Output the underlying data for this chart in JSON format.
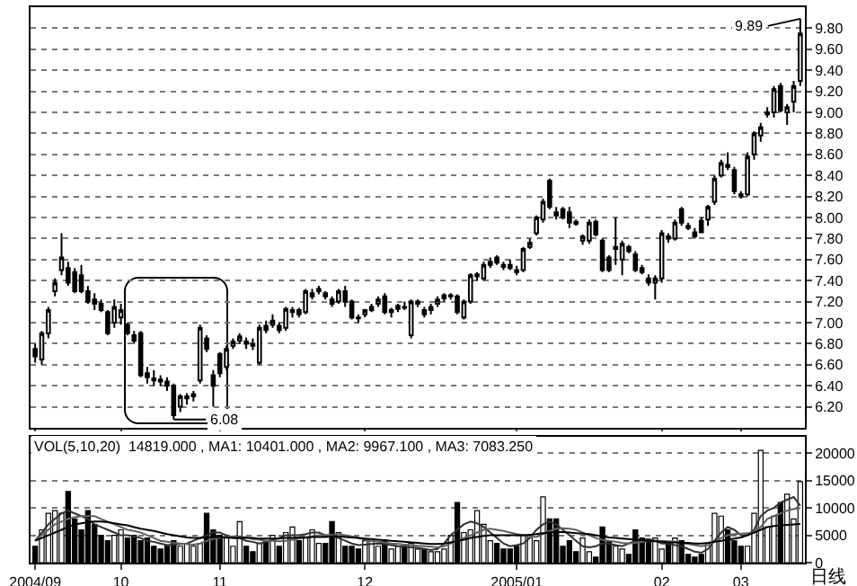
{
  "chart_data": [
    {
      "type": "candlestick",
      "color": "#000000",
      "categories": [
        "2004/09",
        null,
        null,
        null,
        null,
        null,
        null,
        null,
        null,
        null,
        null,
        null,
        null,
        "10",
        null,
        null,
        null,
        null,
        null,
        null,
        null,
        null,
        null,
        null,
        null,
        null,
        null,
        null,
        "11",
        null,
        null,
        null,
        null,
        null,
        null,
        null,
        null,
        null,
        null,
        null,
        null,
        null,
        null,
        null,
        null,
        null,
        null,
        null,
        null,
        null,
        "12",
        null,
        null,
        null,
        null,
        null,
        null,
        null,
        null,
        null,
        null,
        null,
        null,
        null,
        null,
        null,
        null,
        null,
        null,
        null,
        null,
        null,
        null,
        "2005/01",
        null,
        null,
        null,
        null,
        null,
        null,
        null,
        null,
        null,
        null,
        null,
        null,
        null,
        null,
        null,
        null,
        null,
        null,
        null,
        null,
        null,
        "02",
        null,
        null,
        null,
        null,
        null,
        null,
        null,
        null,
        null,
        null,
        null,
        "03",
        null,
        null,
        null,
        null,
        null,
        null,
        null,
        null,
        null
      ],
      "ohlc": [
        [
          6.75,
          6.8,
          6.62,
          6.68
        ],
        [
          6.65,
          6.92,
          6.6,
          6.9
        ],
        [
          6.9,
          7.15,
          6.85,
          7.12
        ],
        [
          7.3,
          7.42,
          7.25,
          7.38
        ],
        [
          7.5,
          7.85,
          7.45,
          7.62
        ],
        [
          7.52,
          7.58,
          7.35,
          7.38
        ],
        [
          7.48,
          7.52,
          7.28,
          7.3
        ],
        [
          7.45,
          7.55,
          7.28,
          7.3
        ],
        [
          7.3,
          7.35,
          7.18,
          7.2
        ],
        [
          7.22,
          7.28,
          7.12,
          7.18
        ],
        [
          7.18,
          7.22,
          7.1,
          7.12
        ],
        [
          7.1,
          7.12,
          6.88,
          6.9
        ],
        [
          7,
          7.22,
          6.95,
          7.15
        ],
        [
          7.05,
          7.18,
          6.98,
          7.12
        ],
        [
          6.98,
          7,
          6.88,
          6.9
        ],
        [
          6.88,
          6.92,
          6.8,
          6.83
        ],
        [
          6.9,
          6.92,
          6.48,
          6.5
        ],
        [
          6.52,
          6.58,
          6.42,
          6.48
        ],
        [
          6.47,
          6.55,
          6.4,
          6.45
        ],
        [
          6.46,
          6.5,
          6.4,
          6.44
        ],
        [
          6.44,
          6.48,
          6.35,
          6.4
        ],
        [
          6.4,
          6.42,
          6.08,
          6.12
        ],
        [
          6.2,
          6.32,
          6.15,
          6.3
        ],
        [
          6.28,
          6.33,
          6.22,
          6.3
        ],
        [
          6.3,
          6.35,
          6.25,
          6.32
        ],
        [
          6.45,
          6.98,
          6.42,
          6.95
        ],
        [
          6.85,
          6.88,
          6.72,
          6.75
        ],
        [
          6.5,
          6.55,
          6.2,
          6.4
        ],
        [
          6.7,
          6.72,
          6.48,
          6.52
        ],
        [
          6.58,
          6.78,
          6.55,
          6.75
        ],
        [
          6.78,
          6.85,
          6.75,
          6.82
        ],
        [
          6.83,
          6.9,
          6.8,
          6.87
        ],
        [
          6.82,
          6.86,
          6.75,
          6.8
        ],
        [
          6.8,
          6.85,
          6.74,
          6.78
        ],
        [
          6.62,
          6.98,
          6.6,
          6.95
        ],
        [
          6.97,
          7.02,
          6.9,
          6.93
        ],
        [
          6.98,
          7.08,
          6.95,
          7.02
        ],
        [
          6.97,
          7,
          6.9,
          6.93
        ],
        [
          6.95,
          7.15,
          6.92,
          7.13
        ],
        [
          7.1,
          7.15,
          7.05,
          7.12
        ],
        [
          7.12,
          7.14,
          7.05,
          7.08
        ],
        [
          7.1,
          7.32,
          7.08,
          7.3
        ],
        [
          7.25,
          7.32,
          7.22,
          7.28
        ],
        [
          7.3,
          7.35,
          7.27,
          7.32
        ],
        [
          7.28,
          7.3,
          7.22,
          7.25
        ],
        [
          7.22,
          7.25,
          7.15,
          7.18
        ],
        [
          7.2,
          7.32,
          7.18,
          7.3
        ],
        [
          7.3,
          7.35,
          7.15,
          7.2
        ],
        [
          7.2,
          7.22,
          7.03,
          7.05
        ],
        [
          7.05,
          7.08,
          7,
          7.04
        ],
        [
          7.08,
          7.13,
          7.05,
          7.12
        ],
        [
          7.12,
          7.18,
          7.1,
          7.15
        ],
        [
          7.18,
          7.25,
          7.15,
          7.22
        ],
        [
          7.25,
          7.28,
          7.08,
          7.1
        ],
        [
          7.1,
          7.14,
          7.05,
          7.12
        ],
        [
          7.13,
          7.18,
          7.1,
          7.16
        ],
        [
          7.15,
          7.2,
          7.12,
          7.14
        ],
        [
          6.88,
          7.22,
          6.85,
          7.2
        ],
        [
          7.18,
          7.22,
          7.15,
          7.2
        ],
        [
          7.12,
          7.15,
          7.05,
          7.08
        ],
        [
          7.12,
          7.18,
          7.08,
          7.15
        ],
        [
          7.18,
          7.25,
          7.15,
          7.22
        ],
        [
          7.23,
          7.28,
          7.2,
          7.26
        ],
        [
          7.25,
          7.28,
          7.22,
          7.26
        ],
        [
          7.25,
          7.27,
          7.08,
          7.1
        ],
        [
          7.05,
          7.22,
          7.03,
          7.2
        ],
        [
          7.2,
          7.47,
          7.18,
          7.45
        ],
        [
          7.44,
          7.48,
          7.4,
          7.46
        ],
        [
          7.42,
          7.58,
          7.4,
          7.55
        ],
        [
          7.55,
          7.62,
          7.52,
          7.58
        ],
        [
          7.62,
          7.64,
          7.55,
          7.57
        ],
        [
          7.55,
          7.58,
          7.5,
          7.53
        ],
        [
          7.55,
          7.6,
          7.5,
          7.52
        ],
        [
          7.5,
          7.54,
          7.45,
          7.48
        ],
        [
          7.5,
          7.72,
          7.48,
          7.7
        ],
        [
          7.72,
          7.8,
          7.7,
          7.76
        ],
        [
          7.85,
          8.02,
          7.83,
          8
        ],
        [
          7.98,
          8.18,
          7.95,
          8.15
        ],
        [
          8.35,
          8.37,
          8.08,
          8.1
        ],
        [
          8.05,
          8.1,
          7.98,
          8.02
        ],
        [
          8.08,
          8.1,
          7.98,
          8
        ],
        [
          8.05,
          8.1,
          7.9,
          7.95
        ],
        [
          7.96,
          7.98,
          7.92,
          7.94
        ],
        [
          7.78,
          7.84,
          7.74,
          7.82
        ],
        [
          7.78,
          7.98,
          7.75,
          7.95
        ],
        [
          7.96,
          7.98,
          7.82,
          7.84
        ],
        [
          7.78,
          7.8,
          7.48,
          7.5
        ],
        [
          7.62,
          7.64,
          7.48,
          7.5
        ],
        [
          7.7,
          8,
          7.55,
          7.72
        ],
        [
          7.6,
          7.78,
          7.45,
          7.75
        ],
        [
          7.72,
          7.74,
          7.66,
          7.68
        ],
        [
          7.65,
          7.68,
          7.48,
          7.5
        ],
        [
          7.52,
          7.55,
          7.46,
          7.48
        ],
        [
          7.42,
          7.46,
          7.35,
          7.38
        ],
        [
          7.38,
          7.45,
          7.22,
          7.42
        ],
        [
          7.42,
          7.88,
          7.38,
          7.85
        ],
        [
          7.82,
          7.85,
          7.76,
          7.8
        ],
        [
          7.8,
          7.98,
          7.78,
          7.95
        ],
        [
          8.08,
          8.1,
          7.92,
          7.95
        ],
        [
          7.92,
          7.95,
          7.88,
          7.9
        ],
        [
          7.86,
          7.9,
          7.8,
          7.82
        ],
        [
          7.97,
          8,
          7.85,
          7.86
        ],
        [
          7.98,
          8.12,
          7.92,
          8.1
        ],
        [
          8.15,
          8.4,
          8.12,
          8.37
        ],
        [
          8.4,
          8.55,
          8.38,
          8.52
        ],
        [
          8.5,
          8.62,
          8.45,
          8.48
        ],
        [
          8.45,
          8.48,
          8.22,
          8.25
        ],
        [
          8.22,
          8.25,
          8.18,
          8.2
        ],
        [
          8.22,
          8.62,
          8.2,
          8.58
        ],
        [
          8.6,
          8.82,
          8.55,
          8.8
        ],
        [
          8.78,
          8.9,
          8.72,
          8.86
        ],
        [
          8.98,
          9.05,
          8.95,
          9
        ],
        [
          9,
          9.25,
          8.95,
          9.22
        ],
        [
          9.25,
          9.28,
          9,
          9.02
        ],
        [
          9,
          9.08,
          8.88,
          9.05
        ],
        [
          9.1,
          9.3,
          9,
          9.25
        ],
        [
          9.3,
          9.89,
          9.25,
          9.75
        ]
      ],
      "ylim": [
        6.0,
        10.0
      ],
      "yticks": [
        {
          "value": 6.2,
          "label": "6.20"
        },
        {
          "value": 6.4,
          "label": "6.40"
        },
        {
          "value": 6.6,
          "label": "6.60"
        },
        {
          "value": 6.8,
          "label": "6.80"
        },
        {
          "value": 7.0,
          "label": "7.00"
        },
        {
          "value": 7.2,
          "label": "7.20"
        },
        {
          "value": 7.4,
          "label": "7.40"
        },
        {
          "value": 7.6,
          "label": "7.60"
        },
        {
          "value": 7.8,
          "label": "7.80"
        },
        {
          "value": 8.0,
          "label": "8.00"
        },
        {
          "value": 8.2,
          "label": "8.20"
        },
        {
          "value": 8.4,
          "label": "8.40"
        },
        {
          "value": 8.6,
          "label": "8.60"
        },
        {
          "value": 8.8,
          "label": "8.80"
        },
        {
          "value": 9.0,
          "label": "9.00"
        },
        {
          "value": 9.2,
          "label": "9.20"
        },
        {
          "value": 9.4,
          "label": "9.40"
        },
        {
          "value": 9.6,
          "label": "9.60"
        },
        {
          "value": 9.8,
          "label": "9.80"
        }
      ],
      "grid": "y",
      "tick_labels": "y",
      "annotations": [
        {
          "text": "6.08",
          "y": 6.08
        },
        "9.89"
      ]
    },
    {
      "type": "bar",
      "categories": [
        "2004/09",
        null,
        null,
        null,
        null,
        null,
        null,
        null,
        null,
        null,
        null,
        null,
        null,
        "10",
        null,
        null,
        null,
        null,
        null,
        null,
        null,
        null,
        null,
        null,
        null,
        null,
        null,
        null,
        "11",
        null,
        null,
        null,
        null,
        null,
        null,
        null,
        null,
        null,
        null,
        null,
        null,
        null,
        null,
        null,
        null,
        null,
        null,
        null,
        null,
        null,
        "12",
        null,
        null,
        null,
        null,
        null,
        null,
        null,
        null,
        null,
        null,
        null,
        null,
        null,
        null,
        null,
        null,
        null,
        null,
        null,
        null,
        null,
        null,
        "2005/01",
        null,
        null,
        null,
        null,
        null,
        null,
        null,
        null,
        null,
        null,
        null,
        null,
        null,
        null,
        null,
        null,
        null,
        null,
        null,
        null,
        null,
        "02",
        null,
        null,
        null,
        null,
        null,
        null,
        null,
        null,
        null,
        null,
        null,
        "03",
        null,
        null,
        null,
        null,
        null,
        null,
        null,
        null,
        null
      ],
      "series": [
        {
          "type": "bar",
          "colors": [
            "#000000",
            "#ffffff",
            "#ffffff",
            "#ffffff",
            "#ffffff",
            "#000000",
            "#000000",
            "#000000",
            "#000000",
            "#000000",
            "#000000",
            "#000000",
            "#ffffff",
            "#ffffff",
            "#000000",
            "#000000",
            "#000000",
            "#000000",
            "#000000",
            "#000000",
            "#000000",
            "#000000",
            "#ffffff",
            "#ffffff",
            "#ffffff",
            "#ffffff",
            "#000000",
            "#000000",
            "#000000",
            "#ffffff",
            "#ffffff",
            "#ffffff",
            "#000000",
            "#000000",
            "#ffffff",
            "#000000",
            "#ffffff",
            "#000000",
            "#ffffff",
            "#ffffff",
            "#000000",
            "#ffffff",
            "#ffffff",
            "#ffffff",
            "#000000",
            "#000000",
            "#ffffff",
            "#000000",
            "#000000",
            "#000000",
            "#ffffff",
            "#ffffff",
            "#ffffff",
            "#000000",
            "#ffffff",
            "#ffffff",
            "#000000",
            "#ffffff",
            "#ffffff",
            "#000000",
            "#ffffff",
            "#ffffff",
            "#ffffff",
            "#ffffff",
            "#000000",
            "#ffffff",
            "#ffffff",
            "#ffffff",
            "#ffffff",
            "#ffffff",
            "#000000",
            "#000000",
            "#000000",
            "#000000",
            "#ffffff",
            "#ffffff",
            "#ffffff",
            "#ffffff",
            "#000000",
            "#000000",
            "#000000",
            "#000000",
            "#000000",
            "#ffffff",
            "#ffffff",
            "#000000",
            "#000000",
            "#000000",
            "#ffffff",
            "#ffffff",
            "#000000",
            "#000000",
            "#000000",
            "#000000",
            "#ffffff",
            "#ffffff",
            "#000000",
            "#ffffff",
            "#000000",
            "#000000",
            "#000000",
            "#000000",
            "#ffffff",
            "#ffffff",
            "#ffffff",
            "#000000",
            "#000000",
            "#000000",
            "#ffffff",
            "#ffffff",
            "#ffffff",
            "#ffffff",
            "#ffffff",
            "#000000",
            "#ffffff",
            "#ffffff",
            "#ffffff"
          ],
          "values": [
            3000,
            6000,
            9000,
            9500,
            9000,
            13000,
            8000,
            6000,
            9500,
            7000,
            5000,
            4000,
            5000,
            6000,
            4500,
            5000,
            4000,
            4500,
            3000,
            2500,
            3000,
            4000,
            3000,
            3500,
            3000,
            3500,
            9000,
            6000,
            5000,
            4500,
            3000,
            7500,
            3000,
            2000,
            3500,
            4000,
            5000,
            3000,
            5500,
            6500,
            4000,
            4500,
            6000,
            3500,
            3500,
            7500,
            5500,
            3000,
            3000,
            2500,
            4000,
            4000,
            3000,
            4000,
            2500,
            3000,
            3000,
            3500,
            2500,
            2500,
            2000,
            2000,
            2500,
            5000,
            11000,
            5500,
            6000,
            9500,
            7000,
            4000,
            3500,
            2500,
            2500,
            3000,
            5000,
            5000,
            4000,
            12000,
            8000,
            8000,
            3000,
            4000,
            2000,
            4500,
            2000,
            1000,
            6500,
            4000,
            3000,
            2500,
            1500,
            6000,
            4500,
            4000,
            4500,
            2500,
            3500,
            4500,
            4000,
            1500,
            1000,
            1500,
            3500,
            9000,
            8500,
            6000,
            4000,
            3000,
            3000,
            9000,
            20500,
            6500,
            8500,
            11000,
            12500,
            8000,
            14800
          ]
        },
        {
          "type": "line",
          "color": "#303030",
          "values": [
            4000,
            5500,
            7000,
            8000,
            9000,
            9500,
            9000,
            8500,
            8000,
            7000,
            6500,
            6000,
            5500,
            5000,
            5000,
            4800,
            4500,
            4000,
            3800,
            3500,
            3200,
            3300,
            3400,
            3500,
            4000,
            4500,
            5000,
            5500,
            5500,
            5000,
            4500,
            4500,
            4000,
            3800,
            3500,
            3800,
            4200,
            4500,
            5000,
            5000,
            5000,
            5200,
            5500,
            5500,
            5000,
            4800,
            4500,
            4000,
            3500,
            3200,
            3300,
            3400,
            3500,
            3400,
            3200,
            3000,
            2900,
            2800,
            2700,
            2500,
            2300,
            2500,
            3500,
            5000,
            6000,
            7000,
            7500,
            7200,
            6500,
            5500,
            4500,
            3500,
            3000,
            3200,
            3500,
            4500,
            6000,
            7000,
            7500,
            7000,
            6000,
            5000,
            4000,
            3000,
            2800,
            3000,
            3500,
            3500,
            3200,
            3000,
            3500,
            4000,
            4200,
            4300,
            4000,
            3500,
            3500,
            3200,
            3000,
            2500,
            2000,
            1800,
            2500,
            4000,
            5500,
            6500,
            6000,
            5000,
            5000,
            6000,
            8500,
            9500,
            10000,
            11000,
            11500,
            12000,
            10400
          ]
        },
        {
          "type": "line",
          "color": "#606060",
          "values": [
            4000,
            5000,
            6000,
            7000,
            7500,
            8000,
            8300,
            8500,
            8500,
            8500,
            8000,
            7500,
            7000,
            6500,
            6000,
            5800,
            5500,
            5000,
            4500,
            4000,
            3800,
            3600,
            3500,
            3400,
            3300,
            3500,
            4000,
            4300,
            4500,
            4700,
            4800,
            4800,
            4600,
            4300,
            4200,
            4000,
            4000,
            3900,
            4000,
            4200,
            4400,
            4600,
            4800,
            5000,
            5000,
            5100,
            5200,
            5000,
            4800,
            4500,
            4200,
            4000,
            3800,
            3700,
            3500,
            3400,
            3300,
            3200,
            3100,
            3000,
            2900,
            2800,
            3000,
            3500,
            4000,
            4500,
            5000,
            5500,
            6000,
            6200,
            6000,
            5800,
            5500,
            5200,
            5000,
            4800,
            4700,
            5200,
            5800,
            6200,
            6300,
            6200,
            6000,
            5500,
            5000,
            4500,
            4200,
            4000,
            3800,
            3600,
            3500,
            3600,
            3800,
            3900,
            4000,
            4000,
            3900,
            3800,
            3600,
            3400,
            3200,
            3000,
            3200,
            3800,
            4500,
            5000,
            5200,
            5300,
            5400,
            5500,
            6500,
            8000,
            8500,
            9000,
            9500,
            9800,
            9970
          ]
        },
        {
          "type": "line",
          "color": "#000000",
          "values": [
            4000,
            4500,
            5000,
            5500,
            6000,
            6500,
            7000,
            7200,
            7400,
            7500,
            7500,
            7400,
            7200,
            7000,
            6800,
            6500,
            6200,
            6000,
            5800,
            5500,
            5200,
            5000,
            4800,
            4600,
            4500,
            4500,
            4600,
            4700,
            4700,
            4600,
            4500,
            4500,
            4500,
            4500,
            4400,
            4400,
            4400,
            4400,
            4500,
            4500,
            4600,
            4600,
            4700,
            4700,
            4700,
            4800,
            4800,
            4700,
            4600,
            4500,
            4400,
            4300,
            4200,
            4100,
            4000,
            3900,
            3800,
            3700,
            3600,
            3500,
            3400,
            3400,
            3500,
            3700,
            4000,
            4200,
            4500,
            4700,
            4900,
            5000,
            5000,
            5000,
            5000,
            5000,
            5000,
            5100,
            5200,
            5400,
            5500,
            5600,
            5600,
            5500,
            5400,
            5300,
            5200,
            5000,
            4800,
            4600,
            4500,
            4400,
            4300,
            4200,
            4100,
            4000,
            3900,
            3800,
            3700,
            3700,
            3600,
            3600,
            3500,
            3500,
            3600,
            3800,
            4000,
            4200,
            4400,
            4600,
            5000,
            5500,
            6000,
            6500,
            6700,
            6800,
            6900,
            7000,
            7080
          ]
        }
      ],
      "ylim": [
        0,
        23000
      ],
      "yticks": [
        0,
        5000,
        10000,
        15000,
        20000
      ],
      "grid": "y",
      "annotations": [
        "VOL(5,10,20)  14819.000 , MA1: 10401.000 , MA2: 9967.100 , MA3: 7083.250",
        "日线"
      ]
    }
  ]
}
